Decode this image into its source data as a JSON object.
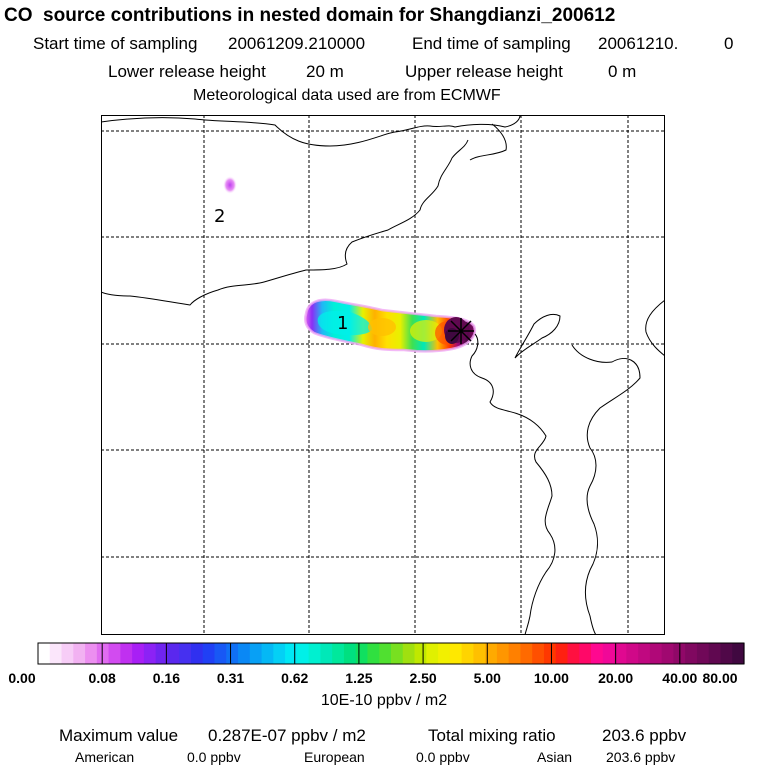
{
  "header": {
    "title": "CO  source contributions in nested domain for Shangdianzi_200612",
    "start_label": "Start time of sampling",
    "start_value": "20061209.210000",
    "end_label": "End time of sampling",
    "end_value": "20061210.",
    "end_extra": "0",
    "lower_label": "Lower release height",
    "lower_value": "20 m",
    "upper_label": "Upper release height",
    "upper_value": "0 m",
    "met_line": "Meteorological data used are from ECMWF"
  },
  "map": {
    "cluster_labels": [
      "2",
      "1"
    ],
    "marker": "receptor-cross"
  },
  "colorbar": {
    "ticks": [
      "0.00",
      "0.08",
      "0.16",
      "0.31",
      "0.62",
      "1.25",
      "2.50",
      "5.00",
      "10.00",
      "20.00",
      "40.00",
      "80.00"
    ],
    "colors": [
      "#ffffff",
      "#fbe6fb",
      "#f7cdf7",
      "#f2b2f2",
      "#ec8ff0",
      "#e06cf0",
      "#d24bf0",
      "#c030f0",
      "#a81ff5",
      "#8c22f5",
      "#7024f0",
      "#5a28ee",
      "#4630f0",
      "#3030f0",
      "#2040f5",
      "#1858f5",
      "#1070f5",
      "#0a88f5",
      "#08a0f5",
      "#05b8f5",
      "#04d0f5",
      "#00e8f5",
      "#00f0e8",
      "#00f0d0",
      "#00e8b8",
      "#00e89c",
      "#00e080",
      "#10e060",
      "#30e040",
      "#50e030",
      "#78e020",
      "#a0e010",
      "#c0e800",
      "#e0f000",
      "#f2f000",
      "#ffe800",
      "#ffd400",
      "#ffc000",
      "#ffaa00",
      "#ff9600",
      "#ff8000",
      "#ff6a00",
      "#ff5000",
      "#ff3800",
      "#ff2010",
      "#ff1040",
      "#ff0868",
      "#ff0890",
      "#f00898",
      "#e00890",
      "#d00888",
      "#c00880",
      "#b00878",
      "#a00870",
      "#900868",
      "#800860",
      "#700858",
      "#600850",
      "#500848",
      "#400840"
    ],
    "unit": "10E-10 ppbv / m2"
  },
  "summary": {
    "max_label": "Maximum value",
    "max_value": "0.287E-07 ppbv / m2",
    "total_label": "Total mixing ratio",
    "total_value": "203.6 ppbv"
  },
  "regions": [
    {
      "name": "American",
      "value": "0.0 ppbv"
    },
    {
      "name": "European",
      "value": "0.0 ppbv"
    },
    {
      "name": "Asian",
      "value": "203.6 ppbv"
    }
  ]
}
